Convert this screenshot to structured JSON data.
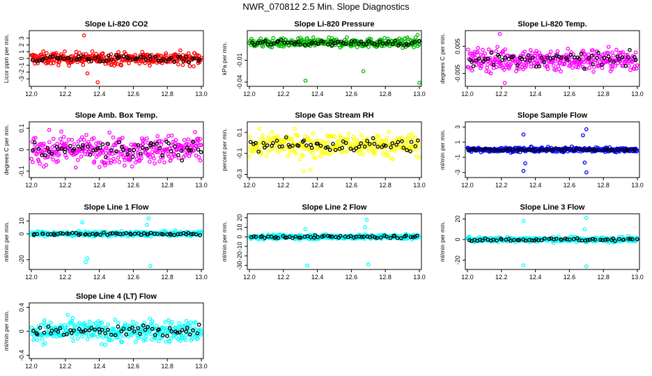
{
  "title": "NWR_070812  2.5 Min. Slope Diagnostics",
  "chart_data": [
    {
      "type": "scatter",
      "title": "Slope Li-820 CO2",
      "ylabel": "Licor ppm per min.",
      "color": "#ff0000",
      "xlim": [
        12.0,
        13.0
      ],
      "ylim": [
        -3.8,
        3.8
      ],
      "xticks": [
        12.0,
        12.2,
        12.4,
        12.6,
        12.8,
        13.0
      ],
      "yticks": [
        -3,
        -2,
        -1,
        0,
        1,
        2,
        3
      ],
      "center": 0,
      "spread": 0.75,
      "spikes": [
        [
          12.31,
          3.4
        ],
        [
          12.39,
          -3.5
        ],
        [
          12.33,
          -2.2
        ]
      ]
    },
    {
      "type": "scatter",
      "title": "Slope Li-820 Pressure",
      "ylabel": "kPa per min.",
      "color": "#00bb00",
      "xlim": [
        12.0,
        13.0
      ],
      "ylim": [
        -0.043,
        0.028
      ],
      "xticks": [
        12.0,
        12.2,
        12.4,
        12.6,
        12.8,
        13.0
      ],
      "yticks": [
        -0.04,
        -0.01
      ],
      "center": 0.014,
      "spread": 0.005,
      "spikes": [
        [
          12.33,
          -0.038
        ],
        [
          12.67,
          -0.025
        ],
        [
          13.0,
          -0.041
        ],
        [
          12.99,
          0.025
        ]
      ]
    },
    {
      "type": "scatter",
      "title": "Slope Li-820 Temp.",
      "ylabel": "degrees C per min.",
      "color": "#ff00ff",
      "xlim": [
        12.0,
        13.0
      ],
      "ylim": [
        -0.009,
        0.01
      ],
      "xticks": [
        12.0,
        12.2,
        12.4,
        12.6,
        12.8,
        13.0
      ],
      "yticks": [
        -0.005,
        0.005
      ],
      "center": 0.0,
      "spread": 0.0035,
      "spikes": [
        [
          12.19,
          0.0095
        ],
        [
          12.22,
          -0.0085
        ]
      ]
    },
    {
      "type": "scatter",
      "title": "Slope Amb. Box Temp.",
      "ylabel": "degrees C per min.",
      "color": "#ff00ff",
      "xlim": [
        12.0,
        13.0
      ],
      "ylim": [
        -0.12,
        0.12
      ],
      "xticks": [
        12.0,
        12.2,
        12.4,
        12.6,
        12.8,
        13.0
      ],
      "yticks": [
        -0.1,
        0.0,
        0.1
      ],
      "center": 0.0,
      "spread": 0.055,
      "spikes": []
    },
    {
      "type": "scatter",
      "title": "Slope Gas Stream RH",
      "ylabel": "percent per min.",
      "color": "#ffff00",
      "xlim": [
        12.0,
        13.0
      ],
      "ylim": [
        -0.31,
        0.18
      ],
      "xticks": [
        12.0,
        12.2,
        12.4,
        12.6,
        12.8,
        13.0
      ],
      "yticks": [
        -0.3,
        -0.1,
        0.1
      ],
      "center": -0.02,
      "spread": 0.09,
      "spikes": [
        [
          12.32,
          -0.27
        ],
        [
          12.36,
          -0.26
        ]
      ]
    },
    {
      "type": "scatter",
      "title": "Slope Sample Flow",
      "ylabel": "ml/min per min.",
      "color": "#0000ff",
      "xlim": [
        12.0,
        13.0
      ],
      "ylim": [
        -3.4,
        3.4
      ],
      "xticks": [
        12.0,
        12.2,
        12.4,
        12.6,
        12.8,
        13.0
      ],
      "yticks": [
        -3,
        -1,
        1,
        3
      ],
      "center": 0,
      "spread": 0.25,
      "spikes": [
        [
          12.33,
          -2.8
        ],
        [
          12.33,
          2.0
        ],
        [
          12.34,
          -1.8
        ],
        [
          12.7,
          2.7
        ],
        [
          12.7,
          -3.0
        ],
        [
          12.68,
          1.9
        ],
        [
          12.69,
          -1.7
        ]
      ]
    },
    {
      "type": "scatter",
      "title": "Slope Line 1 Flow",
      "ylabel": "ml/min per min.",
      "color": "#00ffff",
      "xlim": [
        12.0,
        13.0
      ],
      "ylim": [
        -26,
        14
      ],
      "xticks": [
        12.0,
        12.2,
        12.4,
        12.6,
        12.8,
        13.0
      ],
      "yticks": [
        -20,
        0,
        10
      ],
      "center": 0,
      "spread": 1.5,
      "spikes": [
        [
          12.32,
          -22
        ],
        [
          12.33,
          -19
        ],
        [
          12.3,
          9
        ],
        [
          12.7,
          -25
        ],
        [
          12.69,
          12
        ],
        [
          12.68,
          7
        ]
      ]
    },
    {
      "type": "scatter",
      "title": "Slope Line 2 Flow",
      "ylabel": "ml/min per min.",
      "color": "#00ffff",
      "xlim": [
        12.0,
        13.0
      ],
      "ylim": [
        -32,
        22
      ],
      "xticks": [
        12.0,
        12.2,
        12.4,
        12.6,
        12.8,
        13.0
      ],
      "yticks": [
        -30,
        -20,
        -10,
        0,
        10,
        20
      ],
      "center": 0,
      "spread": 2,
      "spikes": [
        [
          12.34,
          -30
        ],
        [
          12.33,
          8
        ],
        [
          12.69,
          18
        ],
        [
          12.7,
          -29
        ],
        [
          12.68,
          10
        ]
      ]
    },
    {
      "type": "scatter",
      "title": "Slope Line 3 Flow",
      "ylabel": "ml/min per min.",
      "color": "#00ffff",
      "xlim": [
        12.0,
        13.0
      ],
      "ylim": [
        -27,
        23
      ],
      "xticks": [
        12.0,
        12.2,
        12.4,
        12.6,
        12.8,
        13.0
      ],
      "yticks": [
        -20,
        0,
        20
      ],
      "center": 0,
      "spread": 2,
      "spikes": [
        [
          12.33,
          -25
        ],
        [
          12.33,
          18
        ],
        [
          12.7,
          -26
        ],
        [
          12.7,
          21
        ],
        [
          12.69,
          10
        ]
      ]
    },
    {
      "type": "scatter",
      "title": "Slope Line 4 (LT) Flow",
      "ylabel": "ml/min per min.",
      "color": "#00ffff",
      "xlim": [
        12.0,
        13.0
      ],
      "ylim": [
        -0.42,
        0.44
      ],
      "xticks": [
        12.0,
        12.2,
        12.4,
        12.6,
        12.8,
        13.0
      ],
      "yticks": [
        -0.4,
        0.0,
        0.4
      ],
      "center": 0,
      "spread": 0.15,
      "spikes": []
    }
  ]
}
